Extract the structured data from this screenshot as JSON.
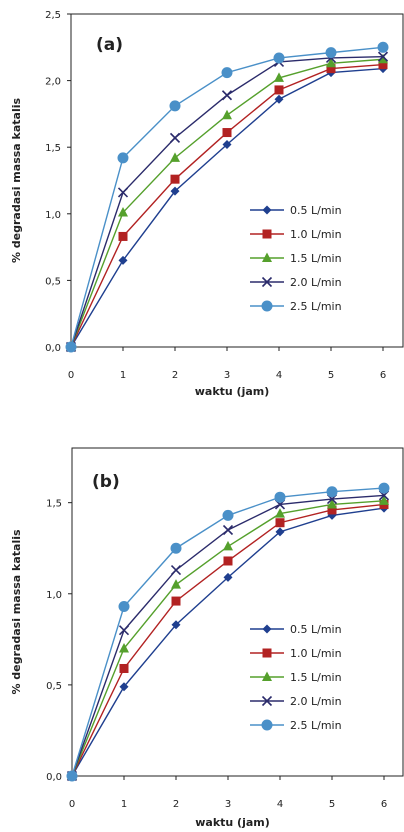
{
  "chart_data": [
    {
      "type": "line",
      "panel_label": "(a)",
      "xlabel": "waktu (jam)",
      "ylabel": "% degradasi massa katalis",
      "x": [
        0,
        1,
        2,
        3,
        4,
        5,
        6
      ],
      "xticks": [
        "0",
        "1",
        "2",
        "3",
        "4",
        "5",
        "6"
      ],
      "ylim": [
        0,
        2.5
      ],
      "yticks": [
        "0,0",
        "0,5",
        "1,0",
        "1,5",
        "2,0",
        "2,5"
      ],
      "grid": false,
      "legend_position": "center-right",
      "series": [
        {
          "name": "0.5 L/min",
          "marker": "diamond",
          "color": "#1f3f8f",
          "values": [
            0,
            0.65,
            1.17,
            1.52,
            1.86,
            2.06,
            2.09
          ]
        },
        {
          "name": "1.0 L/min",
          "marker": "square",
          "color": "#b22222",
          "values": [
            0,
            0.83,
            1.26,
            1.61,
            1.93,
            2.09,
            2.12
          ]
        },
        {
          "name": "1.5 L/min",
          "marker": "triangle",
          "color": "#55a02c",
          "values": [
            0,
            1.01,
            1.42,
            1.74,
            2.02,
            2.13,
            2.16
          ]
        },
        {
          "name": "2.0 L/min",
          "marker": "x",
          "color": "#2b2b6b",
          "values": [
            0,
            1.16,
            1.57,
            1.89,
            2.14,
            2.17,
            2.18
          ]
        },
        {
          "name": "2.5 L/min",
          "marker": "circle",
          "color": "#4a90c8",
          "values": [
            0,
            1.42,
            1.81,
            2.06,
            2.17,
            2.21,
            2.25
          ]
        }
      ]
    },
    {
      "type": "line",
      "panel_label": "(b)",
      "xlabel": "waktu (jam)",
      "ylabel": "% degradasi massa katalis",
      "x": [
        0,
        1,
        2,
        3,
        4,
        5,
        6
      ],
      "xticks": [
        "0",
        "1",
        "2",
        "3",
        "4",
        "5",
        "6"
      ],
      "ylim": [
        0,
        1.8
      ],
      "yticks": [
        "0,0",
        "0,5",
        "1,0",
        "1,5"
      ],
      "grid": false,
      "legend_position": "center-right",
      "series": [
        {
          "name": "0.5 L/min",
          "marker": "diamond",
          "color": "#1f3f8f",
          "values": [
            0,
            0.49,
            0.83,
            1.09,
            1.34,
            1.43,
            1.47
          ]
        },
        {
          "name": "1.0 L/min",
          "marker": "square",
          "color": "#b22222",
          "values": [
            0,
            0.59,
            0.96,
            1.18,
            1.39,
            1.46,
            1.49
          ]
        },
        {
          "name": "1.5 L/min",
          "marker": "triangle",
          "color": "#55a02c",
          "values": [
            0,
            0.7,
            1.05,
            1.26,
            1.44,
            1.49,
            1.51
          ]
        },
        {
          "name": "2.0 L/min",
          "marker": "x",
          "color": "#2b2b6b",
          "values": [
            0,
            0.8,
            1.13,
            1.35,
            1.49,
            1.52,
            1.54
          ]
        },
        {
          "name": "2.5 L/min",
          "marker": "circle",
          "color": "#4a90c8",
          "values": [
            0,
            0.93,
            1.25,
            1.43,
            1.53,
            1.56,
            1.58
          ]
        }
      ]
    }
  ]
}
